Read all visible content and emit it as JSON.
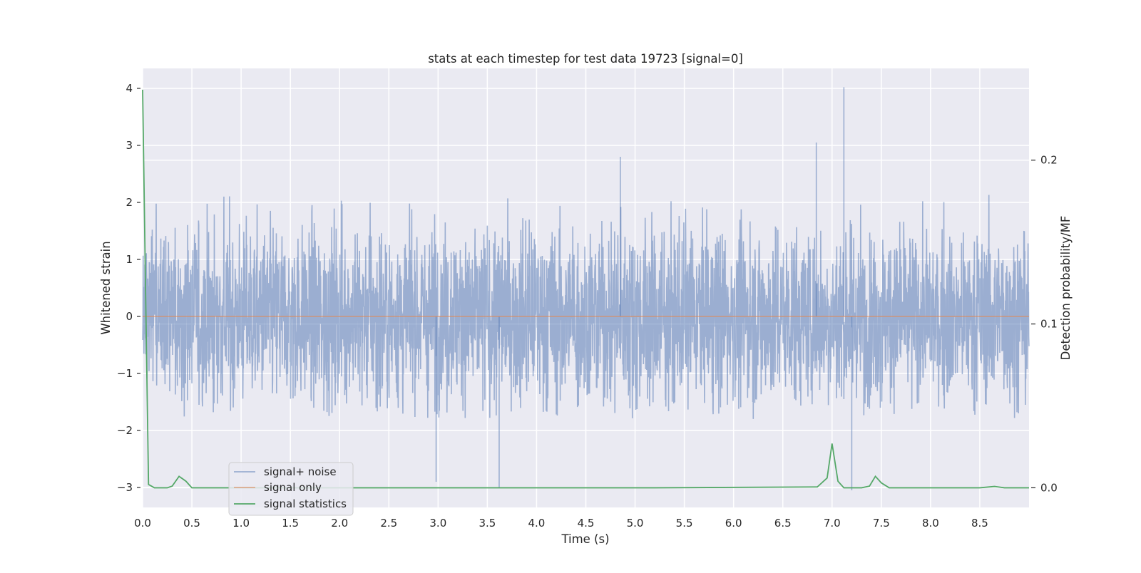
{
  "chart_data": {
    "type": "line",
    "title": "stats at each timestep for test data 19723 [signal=0]",
    "xlabel": "Time (s)",
    "ylabel": "Whitened strain",
    "y2label": "Detection probability/MF",
    "xlim": [
      0.0,
      9.0
    ],
    "ylim": [
      -3.35,
      4.35
    ],
    "y2lim": [
      -0.012,
      0.256
    ],
    "xticks": [
      0.0,
      0.5,
      1.0,
      1.5,
      2.0,
      2.5,
      3.0,
      3.5,
      4.0,
      4.5,
      5.0,
      5.5,
      6.0,
      6.5,
      7.0,
      7.5,
      8.0,
      8.5
    ],
    "xtick_labels": [
      "0.0",
      "0.5",
      "1.0",
      "1.5",
      "2.0",
      "2.5",
      "3.0",
      "3.5",
      "4.0",
      "4.5",
      "5.0",
      "5.5",
      "6.0",
      "6.5",
      "7.0",
      "7.5",
      "8.0",
      "8.5"
    ],
    "yticks": [
      4,
      3,
      2,
      1,
      0,
      -1,
      -2,
      -3
    ],
    "ytick_labels": [
      "4",
      "3",
      "2",
      "1",
      "0",
      "−1",
      "−2",
      "−3"
    ],
    "y2ticks": [
      0.2,
      0.1,
      0.0
    ],
    "y2tick_labels": [
      "0.2",
      "0.1",
      "0.0"
    ],
    "grid": true,
    "legend_position": "lower-left",
    "legend": [
      "signal+ noise",
      "signal only",
      "signal statistics"
    ],
    "series": [
      {
        "name": "signal+ noise",
        "color": "#4c72b0",
        "axis": "left",
        "kind": "noise",
        "x_range": [
          0.0,
          9.0
        ],
        "typical_envelope": [
          -1.8,
          2.2
        ],
        "peaks": [
          {
            "x": 4.85,
            "y": 2.8
          },
          {
            "x": 6.84,
            "y": 3.05
          },
          {
            "x": 7.12,
            "y": 4.02
          },
          {
            "x": 7.2,
            "y": -3.05
          },
          {
            "x": 3.62,
            "y": -3.0
          },
          {
            "x": 2.98,
            "y": -2.9
          }
        ]
      },
      {
        "name": "signal only",
        "color": "#dd8452",
        "axis": "left",
        "x": [
          0.0,
          9.0
        ],
        "values": [
          0.0,
          0.0
        ]
      },
      {
        "name": "signal statistics",
        "color": "#55a868",
        "axis": "right",
        "x": [
          0.0,
          0.03,
          0.06,
          0.12,
          0.25,
          0.3,
          0.37,
          0.44,
          0.5,
          0.6,
          5.1,
          5.2,
          6.85,
          6.95,
          7.0,
          7.06,
          7.12,
          7.3,
          7.38,
          7.44,
          7.5,
          7.58,
          8.5,
          8.65,
          8.75,
          9.0
        ],
        "values": [
          0.243,
          0.12,
          0.002,
          0.0,
          0.0,
          0.001,
          0.007,
          0.004,
          0.0,
          0.0,
          0.0,
          0.0,
          0.0005,
          0.006,
          0.027,
          0.004,
          0.0,
          0.0,
          0.001,
          0.007,
          0.003,
          0.0,
          0.0,
          0.0008,
          0.0,
          0.0
        ]
      }
    ]
  }
}
